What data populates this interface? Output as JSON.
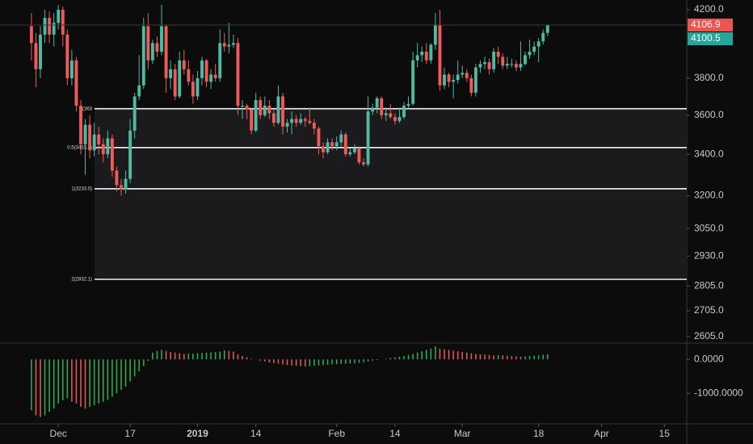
{
  "chart_data": [
    {
      "type": "candlestick",
      "log": true,
      "up_color": "#4fb9a2",
      "down_color": "#ef5b5b",
      "xlim": [
        "2018-11-18",
        "2019-04-20"
      ],
      "xticks": [
        {
          "value": "2018-12-01",
          "label": "Dec"
        },
        {
          "value": "2018-12-17",
          "label": "17"
        },
        {
          "value": "2019-01-01",
          "label": "2019"
        },
        {
          "value": "2019-01-14",
          "label": "14"
        },
        {
          "value": "2019-02-01",
          "label": "Feb"
        },
        {
          "value": "2019-02-14",
          "label": "14"
        },
        {
          "value": "2019-03-01",
          "label": "Mar"
        },
        {
          "value": "2019-03-18",
          "label": "18"
        },
        {
          "value": "2019-04-01",
          "label": "Apr"
        },
        {
          "value": "2019-04-15",
          "label": "15"
        }
      ],
      "ylim": [
        2580,
        4260
      ],
      "yticks": [
        {
          "value": 4200,
          "label": "4200.0"
        },
        {
          "value": 3800,
          "label": "3800.0"
        },
        {
          "value": 3600,
          "label": "3600.0"
        },
        {
          "value": 3400,
          "label": "3400.0"
        },
        {
          "value": 3200,
          "label": "3200.0"
        },
        {
          "value": 3050,
          "label": "3050.0"
        },
        {
          "value": 2930,
          "label": "2930.0"
        },
        {
          "value": 2805,
          "label": "2805.0"
        },
        {
          "value": 2705,
          "label": "2705.0"
        },
        {
          "value": 2605,
          "label": "2605.0"
        }
      ],
      "levels": [
        {
          "value": 3634,
          "label": "0(363"
        },
        {
          "value": 3433.4,
          "label": "0.5(3433.4)"
        },
        {
          "value": 3233,
          "label": "1(3233.0)"
        },
        {
          "value": 2832.1,
          "label": "2(2832.1)"
        }
      ],
      "price_tags": [
        {
          "value": 4106.9,
          "color": "#ef5350"
        },
        {
          "value": 4100.5,
          "color": "#26a69a"
        }
      ],
      "x": [
        "2018-11-25",
        "2018-11-26",
        "2018-11-27",
        "2018-11-28",
        "2018-11-29",
        "2018-11-30",
        "2018-12-01",
        "2018-12-02",
        "2018-12-03",
        "2018-12-04",
        "2018-12-05",
        "2018-12-06",
        "2018-12-07",
        "2018-12-08",
        "2018-12-09",
        "2018-12-10",
        "2018-12-11",
        "2018-12-12",
        "2018-12-13",
        "2018-12-14",
        "2018-12-15",
        "2018-12-16",
        "2018-12-17",
        "2018-12-18",
        "2018-12-19",
        "2018-12-20",
        "2018-12-21",
        "2018-12-22",
        "2018-12-23",
        "2018-12-24",
        "2018-12-25",
        "2018-12-26",
        "2018-12-27",
        "2018-12-28",
        "2018-12-29",
        "2018-12-30",
        "2018-12-31",
        "2019-01-01",
        "2019-01-02",
        "2019-01-03",
        "2019-01-04",
        "2019-01-05",
        "2019-01-06",
        "2019-01-07",
        "2019-01-08",
        "2019-01-09",
        "2019-01-10",
        "2019-01-11",
        "2019-01-12",
        "2019-01-13",
        "2019-01-14",
        "2019-01-15",
        "2019-01-16",
        "2019-01-17",
        "2019-01-18",
        "2019-01-19",
        "2019-01-20",
        "2019-01-21",
        "2019-01-22",
        "2019-01-23",
        "2019-01-24",
        "2019-01-25",
        "2019-01-26",
        "2019-01-27",
        "2019-01-28",
        "2019-01-29",
        "2019-01-30",
        "2019-01-31",
        "2019-02-01",
        "2019-02-02",
        "2019-02-03",
        "2019-02-04",
        "2019-02-05",
        "2019-02-06",
        "2019-02-07",
        "2019-02-08",
        "2019-02-09",
        "2019-02-10",
        "2019-02-11",
        "2019-02-12",
        "2019-02-13",
        "2019-02-14",
        "2019-02-15",
        "2019-02-16",
        "2019-02-17",
        "2019-02-18",
        "2019-02-19",
        "2019-02-20",
        "2019-02-21",
        "2019-02-22",
        "2019-02-23",
        "2019-02-24",
        "2019-02-25",
        "2019-02-26",
        "2019-02-27",
        "2019-02-28",
        "2019-03-01",
        "2019-03-02",
        "2019-03-03",
        "2019-03-04",
        "2019-03-05",
        "2019-03-06",
        "2019-03-07",
        "2019-03-08",
        "2019-03-09",
        "2019-03-10",
        "2019-03-11",
        "2019-03-12",
        "2019-03-13",
        "2019-03-14",
        "2019-03-15",
        "2019-03-16",
        "2019-03-17",
        "2019-03-18",
        "2019-03-19",
        "2019-03-20"
      ],
      "open": [
        4100,
        4000,
        3850,
        4050,
        4150,
        4050,
        4120,
        4200,
        4050,
        3800,
        3900,
        3650,
        3450,
        3550,
        3420,
        3500,
        3450,
        3400,
        3480,
        3320,
        3250,
        3230,
        3280,
        3520,
        3700,
        3760,
        4100,
        3900,
        4000,
        3950,
        4100,
        3800,
        3850,
        3700,
        3900,
        3850,
        3780,
        3700,
        3800,
        3900,
        3780,
        3820,
        3800,
        4000,
        3980,
        3990,
        4000,
        3650,
        3650,
        3630,
        3520,
        3680,
        3600,
        3650,
        3610,
        3560,
        3700,
        3540,
        3560,
        3580,
        3560,
        3580,
        3570,
        3560,
        3530,
        3440,
        3410,
        3460,
        3440,
        3460,
        3500,
        3400,
        3410,
        3430,
        3360,
        3350,
        3620,
        3640,
        3690,
        3600,
        3610,
        3590,
        3570,
        3590,
        3650,
        3660,
        3900,
        3930,
        3950,
        3900,
        3990,
        4110,
        3760,
        3820,
        3780,
        3790,
        3820,
        3830,
        3800,
        3720,
        3860,
        3880,
        3890,
        3850,
        3950,
        3920,
        3870,
        3880,
        3880,
        3860,
        3880,
        3930,
        3950,
        3980,
        4010,
        4060
      ],
      "high": [
        4180,
        4060,
        4100,
        4200,
        4190,
        4180,
        4230,
        4220,
        4080,
        3960,
        3920,
        3680,
        3580,
        3600,
        3560,
        3540,
        3480,
        3520,
        3500,
        3340,
        3280,
        3320,
        3580,
        3720,
        3930,
        4150,
        4180,
        4020,
        4040,
        4230,
        4110,
        3900,
        3880,
        3950,
        3960,
        3900,
        3820,
        3840,
        3920,
        3910,
        3850,
        3880,
        4080,
        4060,
        4120,
        4050,
        4030,
        3680,
        3660,
        3640,
        3720,
        3700,
        3700,
        3680,
        3630,
        3760,
        3720,
        3580,
        3620,
        3600,
        3610,
        3590,
        3640,
        3580,
        3540,
        3460,
        3480,
        3480,
        3490,
        3520,
        3510,
        3430,
        3450,
        3440,
        3380,
        3700,
        3660,
        3700,
        3700,
        3640,
        3660,
        3610,
        3640,
        3670,
        3700,
        3950,
        4000,
        3980,
        4000,
        4000,
        4180,
        4200,
        3860,
        3830,
        3820,
        3900,
        3870,
        3850,
        3820,
        3880,
        3900,
        3920,
        3910,
        3970,
        3980,
        3940,
        3920,
        3910,
        3900,
        4010,
        3950,
        4020,
        4010,
        4030,
        4080,
        4110
      ],
      "low": [
        3900,
        3750,
        3800,
        4000,
        4000,
        3980,
        4080,
        3980,
        3760,
        3760,
        3620,
        3400,
        3300,
        3380,
        3390,
        3400,
        3360,
        3380,
        3290,
        3220,
        3200,
        3210,
        3260,
        3480,
        3680,
        3740,
        3850,
        3880,
        3920,
        3930,
        3720,
        3740,
        3680,
        3690,
        3820,
        3760,
        3660,
        3680,
        3760,
        3750,
        3740,
        3780,
        3780,
        3950,
        3940,
        3970,
        3600,
        3580,
        3580,
        3500,
        3510,
        3580,
        3590,
        3580,
        3540,
        3550,
        3500,
        3510,
        3500,
        3540,
        3550,
        3540,
        3550,
        3500,
        3400,
        3380,
        3400,
        3420,
        3420,
        3440,
        3390,
        3390,
        3400,
        3350,
        3340,
        3340,
        3600,
        3610,
        3580,
        3570,
        3580,
        3550,
        3560,
        3580,
        3630,
        3650,
        3860,
        3890,
        3880,
        3880,
        3960,
        3730,
        3740,
        3750,
        3690,
        3770,
        3800,
        3780,
        3700,
        3700,
        3830,
        3850,
        3820,
        3830,
        3880,
        3850,
        3850,
        3860,
        3840,
        3840,
        3870,
        3910,
        3930,
        3890,
        3990,
        4040
      ],
      "close": [
        4000,
        3850,
        4050,
        4150,
        4050,
        4120,
        4200,
        4050,
        3800,
        3900,
        3650,
        3450,
        3550,
        3420,
        3500,
        3450,
        3400,
        3480,
        3320,
        3250,
        3230,
        3280,
        3520,
        3700,
        3760,
        4100,
        3900,
        4000,
        3950,
        4100,
        3800,
        3850,
        3700,
        3900,
        3850,
        3780,
        3700,
        3800,
        3900,
        3780,
        3820,
        3800,
        4000,
        3980,
        3990,
        4000,
        3650,
        3650,
        3630,
        3520,
        3680,
        3600,
        3650,
        3610,
        3560,
        3700,
        3540,
        3560,
        3580,
        3560,
        3580,
        3570,
        3560,
        3530,
        3440,
        3410,
        3460,
        3440,
        3460,
        3500,
        3400,
        3410,
        3430,
        3360,
        3350,
        3620,
        3640,
        3690,
        3600,
        3610,
        3590,
        3570,
        3590,
        3650,
        3660,
        3900,
        3930,
        3950,
        3900,
        3990,
        4110,
        3760,
        3820,
        3780,
        3790,
        3820,
        3830,
        3800,
        3720,
        3860,
        3880,
        3890,
        3850,
        3950,
        3920,
        3870,
        3880,
        3880,
        3860,
        3880,
        3930,
        3950,
        3980,
        4010,
        4060,
        4106.9
      ]
    },
    {
      "type": "bar",
      "up_color": "#2fa84f",
      "down_color": "#e05555",
      "ylim": [
        -1900,
        480
      ],
      "yticks": [
        {
          "value": 0,
          "label": "0.0000"
        },
        {
          "value": -1000,
          "label": "-1000.0000"
        }
      ],
      "values": [
        -1500,
        -1650,
        -1700,
        -1650,
        -1550,
        -1450,
        -1300,
        -1200,
        -1150,
        -1250,
        -1300,
        -1400,
        -1450,
        -1400,
        -1350,
        -1300,
        -1250,
        -1200,
        -1100,
        -1000,
        -900,
        -800,
        -650,
        -500,
        -350,
        -200,
        -50,
        200,
        250,
        280,
        250,
        220,
        200,
        180,
        160,
        170,
        170,
        180,
        190,
        200,
        210,
        220,
        230,
        260,
        250,
        230,
        150,
        100,
        60,
        20,
        0,
        -40,
        -60,
        -90,
        -110,
        -130,
        -150,
        -170,
        -180,
        -190,
        -200,
        -210,
        -200,
        -190,
        -180,
        -170,
        -160,
        -150,
        -140,
        -130,
        -130,
        -120,
        -110,
        -100,
        -90,
        -60,
        -40,
        -20,
        0,
        20,
        40,
        60,
        80,
        100,
        130,
        160,
        200,
        240,
        280,
        320,
        380,
        320,
        300,
        280,
        260,
        240,
        220,
        200,
        180,
        160,
        150,
        140,
        130,
        120,
        130,
        120,
        110,
        100,
        90,
        80,
        90,
        100,
        110,
        120,
        140,
        150
      ]
    }
  ]
}
